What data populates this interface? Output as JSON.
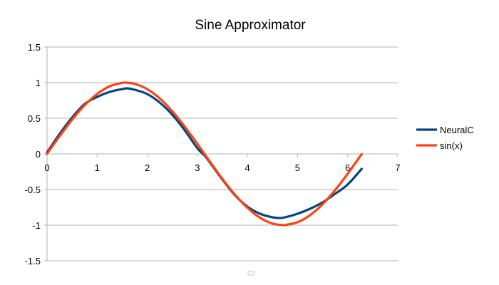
{
  "chart_data": {
    "type": "line",
    "title": "Sine Approximator",
    "xlabel": "",
    "ylabel": "",
    "xlim": [
      0,
      7
    ],
    "ylim": [
      -1.5,
      1.5
    ],
    "x_ticks": [
      0,
      1,
      2,
      3,
      4,
      5,
      6,
      7
    ],
    "y_ticks": [
      1.5,
      1,
      0.5,
      0,
      -0.5,
      -1,
      -1.5
    ],
    "x_tick_labels": [
      "0",
      "1",
      "2",
      "3",
      "4",
      "5",
      "6",
      "7"
    ],
    "y_tick_labels": [
      "1.5",
      "1",
      "0.5",
      "0",
      "-0.5",
      "-1",
      "-1.5"
    ],
    "grid": "horizontal",
    "legend": "right",
    "series": [
      {
        "name": "NeuralC",
        "color": "#004586",
        "x": [
          0,
          0.25,
          0.5,
          0.75,
          1.0,
          1.25,
          1.5,
          1.6,
          1.75,
          2.0,
          2.25,
          2.5,
          2.75,
          3.0,
          3.14,
          3.25,
          3.5,
          3.75,
          4.0,
          4.25,
          4.5,
          4.65,
          4.75,
          5.0,
          5.25,
          5.5,
          5.75,
          6.0,
          6.28
        ],
        "y": [
          0.02,
          0.28,
          0.51,
          0.7,
          0.8,
          0.87,
          0.91,
          0.92,
          0.9,
          0.84,
          0.72,
          0.55,
          0.33,
          0.08,
          -0.02,
          -0.12,
          -0.36,
          -0.58,
          -0.74,
          -0.84,
          -0.89,
          -0.9,
          -0.89,
          -0.84,
          -0.77,
          -0.68,
          -0.56,
          -0.43,
          -0.21
        ]
      },
      {
        "name": "sin(x)",
        "color": "#ff420e",
        "x": [
          0,
          0.25,
          0.5,
          0.75,
          1.0,
          1.25,
          1.5,
          1.5708,
          1.75,
          2.0,
          2.25,
          2.5,
          2.75,
          3.0,
          3.1416,
          3.25,
          3.5,
          3.75,
          4.0,
          4.25,
          4.5,
          4.7124,
          4.75,
          5.0,
          5.25,
          5.5,
          5.75,
          6.0,
          6.28
        ],
        "y": [
          0,
          0.247,
          0.479,
          0.682,
          0.841,
          0.949,
          0.997,
          1.0,
          0.984,
          0.909,
          0.778,
          0.598,
          0.382,
          0.141,
          0,
          -0.108,
          -0.351,
          -0.572,
          -0.757,
          -0.895,
          -0.978,
          -1.0,
          -0.999,
          -0.959,
          -0.859,
          -0.706,
          -0.508,
          -0.279,
          -0.003
        ]
      }
    ]
  }
}
